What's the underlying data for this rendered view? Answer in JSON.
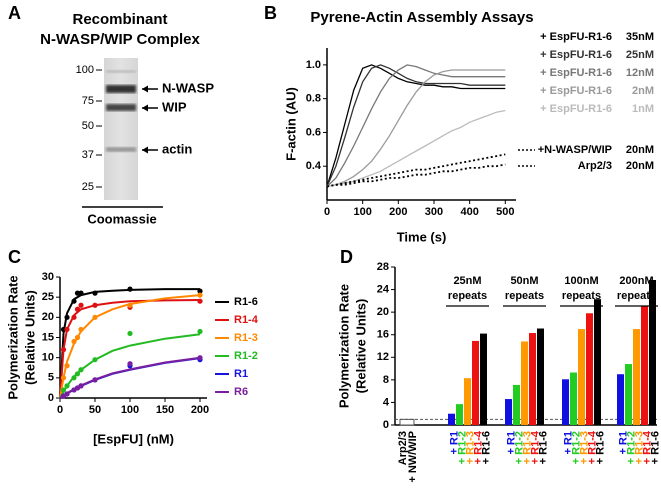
{
  "gel": {
    "panel_label": "A",
    "title": [
      "Recombinant",
      "N-WASP/WIP Complex"
    ],
    "markers": [
      100,
      75,
      50,
      37,
      25
    ],
    "bands": [
      "N-WASP",
      "WIP",
      "actin"
    ],
    "stain": "Coomassie"
  },
  "chart_data": [
    {
      "panel_label": "B",
      "type": "line",
      "title": "Pyrene-Actin Assembly Assays",
      "x_label": "Time (s)",
      "y_label": "F-actin (AU)",
      "x": [
        0,
        25,
        50,
        75,
        100,
        125,
        150,
        175,
        200,
        225,
        250,
        275,
        300,
        325,
        350,
        375,
        400,
        425,
        450,
        475,
        500
      ],
      "xlim": [
        0,
        530
      ],
      "xticks": [
        0,
        100,
        200,
        300,
        400,
        500
      ],
      "ylim": [
        0.2,
        1.1
      ],
      "yticks": [
        0.4,
        0.6,
        0.8,
        {
          "value": 1,
          "label": "1.0"
        }
      ],
      "series": [
        {
          "name": "+ EspFU-R1-6",
          "concentration": "35nM",
          "color": "#000000",
          "dash": false,
          "values": [
            0.28,
            0.45,
            0.65,
            0.85,
            0.98,
            1.0,
            0.98,
            0.95,
            0.92,
            0.9,
            0.89,
            0.88,
            0.88,
            0.87,
            0.87,
            0.86,
            0.86,
            0.86,
            0.86,
            0.86,
            0.86
          ]
        },
        {
          "name": "+ EspFU-R1-6",
          "concentration": "25nM",
          "color": "#333333",
          "dash": false,
          "values": [
            0.28,
            0.4,
            0.57,
            0.75,
            0.9,
            0.98,
            1.0,
            0.98,
            0.95,
            0.92,
            0.9,
            0.89,
            0.89,
            0.89,
            0.89,
            0.89,
            0.88,
            0.88,
            0.88,
            0.88,
            0.88
          ]
        },
        {
          "name": "+ EspFU-R1-6",
          "concentration": "12nM",
          "color": "#777777",
          "dash": false,
          "values": [
            0.28,
            0.33,
            0.42,
            0.52,
            0.63,
            0.74,
            0.84,
            0.92,
            0.97,
            1.0,
            0.99,
            0.97,
            0.95,
            0.94,
            0.93,
            0.93,
            0.93,
            0.93,
            0.93,
            0.93,
            0.93
          ]
        },
        {
          "name": "+ EspFU-R1-6",
          "concentration": "2nM",
          "color": "#9a9a9a",
          "dash": false,
          "values": [
            0.28,
            0.29,
            0.31,
            0.34,
            0.38,
            0.43,
            0.5,
            0.58,
            0.67,
            0.76,
            0.84,
            0.9,
            0.94,
            0.96,
            0.97,
            0.97,
            0.97,
            0.97,
            0.97,
            0.97,
            0.97
          ]
        },
        {
          "name": "+ EspFU-R1-6",
          "concentration": "1nM",
          "color": "#bbbbbb",
          "dash": false,
          "values": [
            0.28,
            0.29,
            0.3,
            0.31,
            0.33,
            0.35,
            0.37,
            0.4,
            0.43,
            0.46,
            0.49,
            0.52,
            0.55,
            0.58,
            0.61,
            0.63,
            0.66,
            0.68,
            0.7,
            0.72,
            0.73
          ]
        },
        {
          "name": "+N-WASP/WIP",
          "concentration": "20nM",
          "color": "#000000",
          "dash": true,
          "values": [
            0.28,
            0.29,
            0.3,
            0.31,
            0.32,
            0.33,
            0.34,
            0.35,
            0.36,
            0.37,
            0.38,
            0.38,
            0.39,
            0.4,
            0.41,
            0.42,
            0.43,
            0.44,
            0.45,
            0.46,
            0.47
          ]
        },
        {
          "name": "Arp2/3",
          "concentration": "20nM",
          "color": "#000000",
          "dash": true,
          "values": [
            0.28,
            0.29,
            0.29,
            0.3,
            0.31,
            0.31,
            0.32,
            0.33,
            0.33,
            0.34,
            0.35,
            0.35,
            0.36,
            0.37,
            0.37,
            0.38,
            0.39,
            0.39,
            0.4,
            0.4,
            0.41
          ]
        }
      ]
    },
    {
      "panel_label": "C",
      "type": "scatter",
      "x_label": "[EspFU] (nM)",
      "y_label": [
        "Polymerization Rate",
        "(Relative Units)"
      ],
      "x": [
        5,
        10,
        20,
        25,
        30,
        50,
        100,
        200
      ],
      "fit_x": [
        0,
        5,
        10,
        20,
        30,
        50,
        75,
        100,
        150,
        200
      ],
      "xlim": [
        0,
        210
      ],
      "xticks": [
        0,
        50,
        100,
        150,
        200
      ],
      "ylim": [
        0,
        30
      ],
      "yticks": [
        0,
        5,
        10,
        15,
        20,
        25,
        30
      ],
      "series": [
        {
          "name": "R1-6",
          "color": "#000000",
          "values": [
            17,
            20,
            24,
            26,
            26,
            26,
            27,
            26.5
          ],
          "fit_values": [
            0,
            16,
            21,
            24.5,
            25.5,
            26.3,
            26.6,
            26.8,
            27,
            27
          ]
        },
        {
          "name": "R1-4",
          "color": "#dd1111",
          "values": [
            12,
            17,
            20,
            22,
            23,
            23,
            22.5,
            24
          ],
          "fit_values": [
            0,
            12,
            17,
            20.5,
            22,
            23,
            23.6,
            24,
            24.2,
            24.3
          ]
        },
        {
          "name": "R1-3",
          "color": "#ff8800",
          "values": [
            5,
            8,
            14,
            15,
            17,
            20,
            23,
            25.5
          ],
          "fit_values": [
            0,
            5,
            9,
            13.5,
            16.5,
            20,
            22,
            23.3,
            24.7,
            25.5
          ]
        },
        {
          "name": "R1-2",
          "color": "#22bb22",
          "values": [
            2,
            3,
            5,
            6,
            7,
            9.5,
            16,
            16.5
          ],
          "fit_values": [
            0,
            1.5,
            3,
            5.3,
            7,
            9.5,
            11.7,
            13,
            14.7,
            15.8
          ]
        },
        {
          "name": "R1",
          "color": "#1515dd",
          "values": [
            0.5,
            1,
            2,
            2.5,
            3,
            4.5,
            8,
            9.5
          ],
          "fit_values": [
            0,
            0.6,
            1.1,
            2.1,
            3,
            4.5,
            6,
            7,
            8.7,
            9.9
          ]
        },
        {
          "name": "R6",
          "color": "#7a1fa0",
          "values": [
            0.5,
            1,
            2,
            2.5,
            3,
            4.5,
            8.5,
            10
          ],
          "fit_values": [
            0,
            0.6,
            1.2,
            2.2,
            3.1,
            4.6,
            6.1,
            7.1,
            8.8,
            10
          ]
        }
      ]
    },
    {
      "panel_label": "D",
      "type": "bar",
      "y_label": [
        "Polymerization Rate",
        "(Relative Units)"
      ],
      "ylim": [
        0,
        28
      ],
      "yticks": [
        0,
        4,
        8,
        12,
        16,
        20,
        24,
        28
      ],
      "categories": [
        "+ R1",
        "+ R1-2",
        "+ R1-3",
        "+ R1-4",
        "+ R1-6"
      ],
      "colors": [
        "#1010e0",
        "#22cc22",
        "#ff9900",
        "#ee1111",
        "#000000"
      ],
      "control": {
        "label": [
          "Arp2/3",
          "+ NW/WIP"
        ],
        "value": 1
      },
      "groups": [
        {
          "label": [
            "25nM",
            "repeats"
          ],
          "values": [
            2,
            3.7,
            8.3,
            14.9,
            16.2
          ]
        },
        {
          "label": [
            "50nM",
            "repeats"
          ],
          "values": [
            4.6,
            7.1,
            14.8,
            16.3,
            17.1
          ]
        },
        {
          "label": [
            "100nM",
            "repeats"
          ],
          "values": [
            8.1,
            9.3,
            17,
            19.8,
            22.3
          ]
        },
        {
          "label": [
            "200nM",
            "repeats"
          ],
          "values": [
            9,
            10.8,
            17,
            21,
            25.7
          ]
        }
      ]
    }
  ]
}
